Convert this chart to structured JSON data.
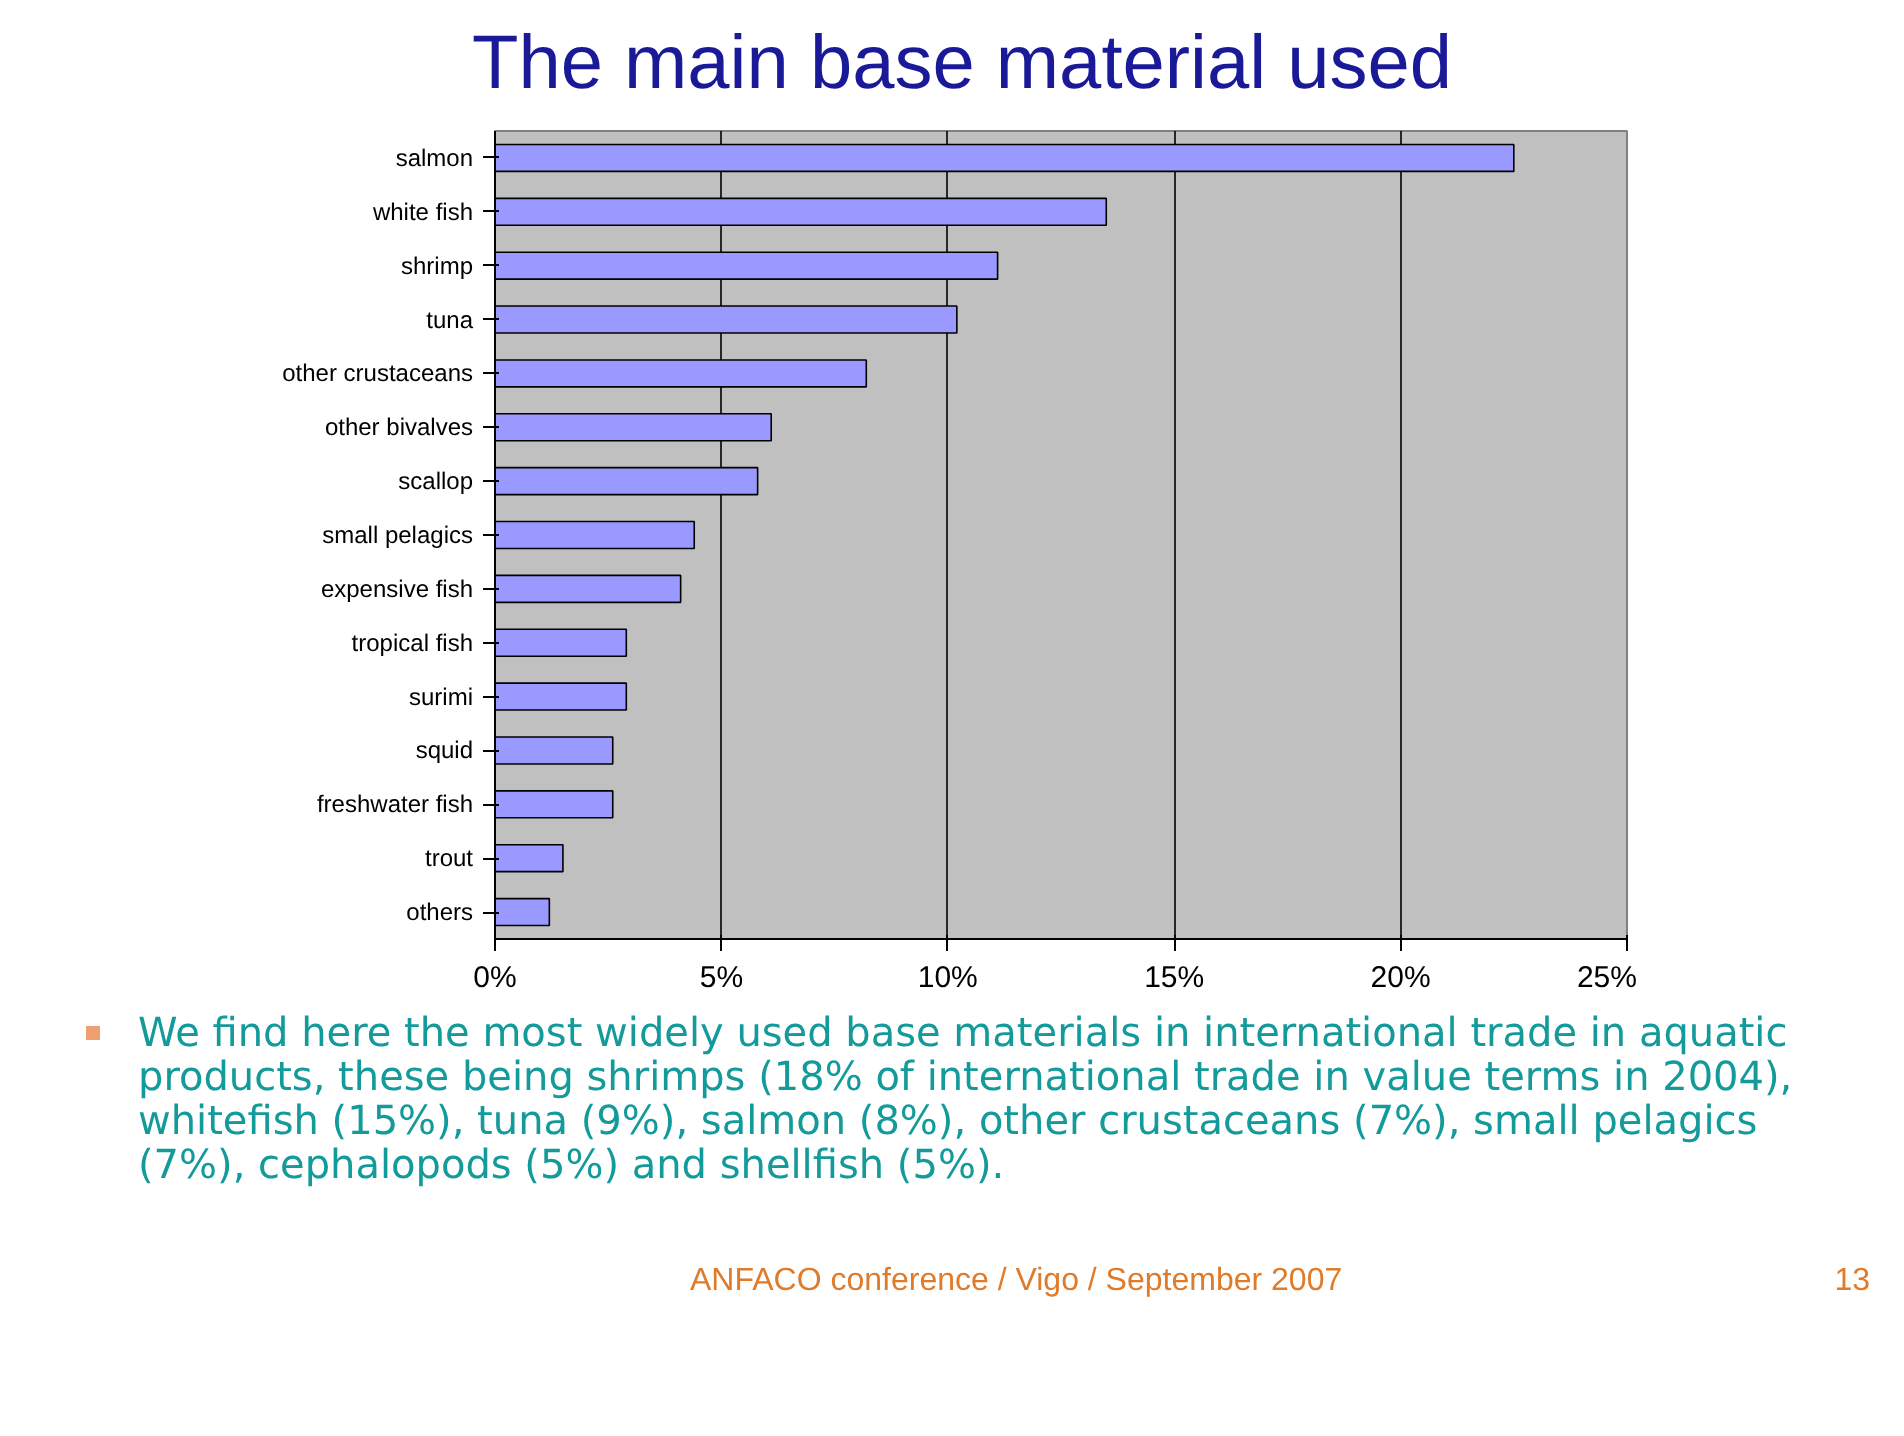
{
  "chart_data": {
    "type": "bar",
    "orientation": "horizontal",
    "title": "The main base material used",
    "categories": [
      "salmon",
      "white fish",
      "shrimp",
      "tuna",
      "other crustaceans",
      "other bivalves",
      "scallop",
      "small pelagics",
      "expensive fish",
      "tropical fish",
      "surimi",
      "squid",
      "freshwater fish",
      "trout",
      "others"
    ],
    "values": [
      22.5,
      13.5,
      11.1,
      10.2,
      8.2,
      6.1,
      5.8,
      4.4,
      4.1,
      2.9,
      2.9,
      2.6,
      2.6,
      1.5,
      1.2
    ],
    "color": "#9999ff",
    "xlim": [
      0,
      25
    ],
    "xticks": [
      {
        "value": 0,
        "label": "0%"
      },
      {
        "value": 5,
        "label": "5%"
      },
      {
        "value": 10,
        "label": "10%"
      },
      {
        "value": 15,
        "label": "15%"
      },
      {
        "value": 20,
        "label": "20%"
      },
      {
        "value": 25,
        "label": "25%"
      }
    ],
    "grid": "x",
    "annotations": [
      "We find here the most widely used base materials in international trade in aquatic products, these being shrimps (18% of international trade in value terms in 2004), whitefish (15%), tuna (9%), salmon (8%), other crustaceans (7%), small pelagics (7%), cephalopods (5%) and shellfish (5%).",
      "ANFACO conference / Vigo / September 2007",
      "13"
    ]
  }
}
